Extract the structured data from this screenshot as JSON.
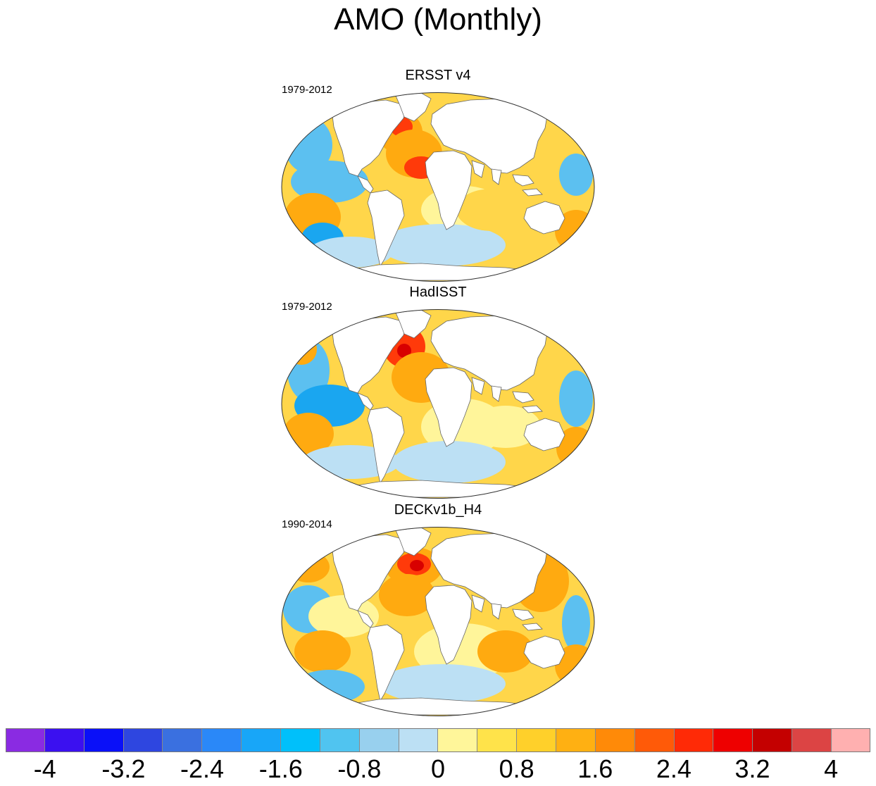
{
  "title": "AMO (Monthly)",
  "panels": [
    {
      "name": "ERSST v4",
      "period": "1979-2012"
    },
    {
      "name": "HadISST",
      "period": "1979-2012"
    },
    {
      "name": "DECKv1b_H4",
      "period": "1990-2014"
    }
  ],
  "colorbar": {
    "colors": [
      "#8a2be2",
      "#3b10f0",
      "#0a10f8",
      "#2e46e0",
      "#3a70e0",
      "#2a88f8",
      "#18a6f8",
      "#00c0fa",
      "#50c4f0",
      "#98d0ee",
      "#bce0f4",
      "#fff69a",
      "#ffe34a",
      "#ffd02a",
      "#ffb012",
      "#ff8a08",
      "#ff5a08",
      "#ff2a06",
      "#ee0000",
      "#c40000",
      "#dc4444",
      "#ffb0b0"
    ],
    "labels": [
      "-4",
      "-3.2",
      "-2.4",
      "-1.6",
      "-0.8",
      "0",
      "0.8",
      "1.6",
      "2.4",
      "3.2",
      "4"
    ]
  },
  "palette": {
    "ocean_warm": "#ffd64a",
    "ocean_light": "#fff59a",
    "ocean_orange": "#ffaa10",
    "ocean_red": "#ff3a0a",
    "ocean_dark_red": "#d80000",
    "ocean_cool": "#bce0f4",
    "ocean_blue": "#5cc0f0",
    "ocean_deep_blue": "#1aa6f0",
    "land": "#ffffff",
    "coast": "#666666"
  }
}
